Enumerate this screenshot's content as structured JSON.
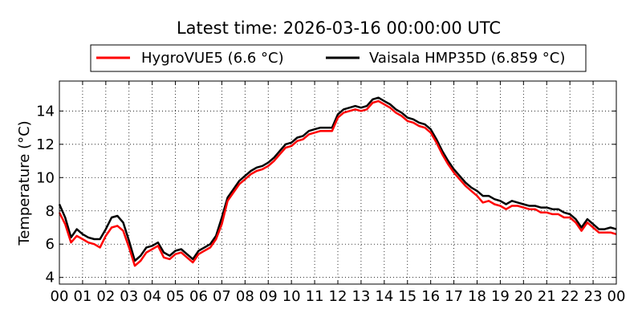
{
  "chart_data": {
    "type": "line",
    "title": "Latest time: 2026-03-16 00:00:00 UTC",
    "xlabel": "",
    "ylabel": "Temperature (°C)",
    "xlim": [
      0,
      24
    ],
    "ylim": [
      3.6,
      15.8
    ],
    "x_ticks": [
      0,
      1,
      2,
      3,
      4,
      5,
      6,
      7,
      8,
      9,
      10,
      11,
      12,
      13,
      14,
      15,
      16,
      17,
      18,
      19,
      20,
      21,
      22,
      23,
      24
    ],
    "x_tick_labels": [
      "00",
      "01",
      "02",
      "03",
      "04",
      "05",
      "06",
      "07",
      "08",
      "09",
      "10",
      "11",
      "12",
      "13",
      "14",
      "15",
      "16",
      "17",
      "18",
      "19",
      "20",
      "21",
      "22",
      "23",
      "00"
    ],
    "y_ticks": [
      4,
      6,
      8,
      10,
      12,
      14
    ],
    "y_tick_labels": [
      "4",
      "6",
      "8",
      "10",
      "12",
      "14"
    ],
    "grid": true,
    "legend_position": "top",
    "x": [
      0,
      0.25,
      0.5,
      0.75,
      1,
      1.25,
      1.5,
      1.75,
      2,
      2.25,
      2.5,
      2.75,
      3,
      3.25,
      3.5,
      3.75,
      4,
      4.25,
      4.5,
      4.75,
      5,
      5.25,
      5.5,
      5.75,
      6,
      6.25,
      6.5,
      6.75,
      7,
      7.25,
      7.5,
      7.75,
      8,
      8.25,
      8.5,
      8.75,
      9,
      9.25,
      9.5,
      9.75,
      10,
      10.25,
      10.5,
      10.75,
      11,
      11.25,
      11.5,
      11.75,
      12,
      12.25,
      12.5,
      12.75,
      13,
      13.25,
      13.5,
      13.75,
      14,
      14.25,
      14.5,
      14.75,
      15,
      15.25,
      15.5,
      15.75,
      16,
      16.25,
      16.5,
      16.75,
      17,
      17.25,
      17.5,
      17.75,
      18,
      18.25,
      18.5,
      18.75,
      19,
      19.25,
      19.5,
      19.75,
      20,
      20.25,
      20.5,
      20.75,
      21,
      21.25,
      21.5,
      21.75,
      22,
      22.25,
      22.5,
      22.75,
      23,
      23.25,
      23.5,
      23.75,
      24
    ],
    "series": [
      {
        "name": "HygroVUE5 (6.6 °C)",
        "color": "#ff0000",
        "values": [
          7.9,
          7.2,
          6.1,
          6.5,
          6.3,
          6.1,
          6.0,
          5.8,
          6.5,
          7.0,
          7.1,
          6.8,
          5.8,
          4.7,
          5.0,
          5.5,
          5.7,
          5.9,
          5.2,
          5.1,
          5.4,
          5.5,
          5.2,
          4.9,
          5.4,
          5.6,
          5.8,
          6.3,
          7.2,
          8.6,
          9.1,
          9.6,
          9.9,
          10.2,
          10.4,
          10.5,
          10.7,
          11.0,
          11.4,
          11.8,
          11.9,
          12.2,
          12.3,
          12.6,
          12.7,
          12.8,
          12.8,
          12.8,
          13.6,
          13.9,
          14.0,
          14.1,
          14.0,
          14.1,
          14.5,
          14.6,
          14.4,
          14.2,
          13.9,
          13.7,
          13.4,
          13.3,
          13.1,
          13.0,
          12.7,
          12.1,
          11.4,
          10.8,
          10.3,
          9.9,
          9.5,
          9.2,
          8.9,
          8.5,
          8.6,
          8.4,
          8.3,
          8.1,
          8.3,
          8.3,
          8.2,
          8.1,
          8.1,
          7.9,
          7.9,
          7.8,
          7.8,
          7.6,
          7.6,
          7.3,
          6.8,
          7.3,
          7.0,
          6.7,
          6.7,
          6.7,
          6.6
        ]
      },
      {
        "name": "Vaisala HMP35D (6.859 °C)",
        "color": "#000000",
        "values": [
          8.4,
          7.6,
          6.4,
          6.9,
          6.6,
          6.4,
          6.3,
          6.3,
          6.9,
          7.6,
          7.7,
          7.3,
          6.2,
          5.0,
          5.3,
          5.8,
          5.9,
          6.1,
          5.5,
          5.3,
          5.6,
          5.7,
          5.4,
          5.1,
          5.6,
          5.8,
          6.0,
          6.5,
          7.6,
          8.8,
          9.3,
          9.8,
          10.1,
          10.4,
          10.6,
          10.7,
          10.9,
          11.2,
          11.6,
          12.0,
          12.1,
          12.4,
          12.5,
          12.8,
          12.9,
          13.0,
          13.0,
          13.0,
          13.8,
          14.1,
          14.2,
          14.3,
          14.2,
          14.3,
          14.7,
          14.8,
          14.6,
          14.4,
          14.1,
          13.9,
          13.6,
          13.5,
          13.3,
          13.2,
          12.9,
          12.3,
          11.6,
          11.0,
          10.5,
          10.1,
          9.7,
          9.4,
          9.2,
          8.9,
          8.9,
          8.7,
          8.6,
          8.4,
          8.6,
          8.5,
          8.4,
          8.3,
          8.3,
          8.2,
          8.2,
          8.1,
          8.1,
          7.9,
          7.8,
          7.5,
          7.0,
          7.5,
          7.2,
          6.9,
          6.9,
          7.0,
          6.9
        ]
      }
    ]
  }
}
